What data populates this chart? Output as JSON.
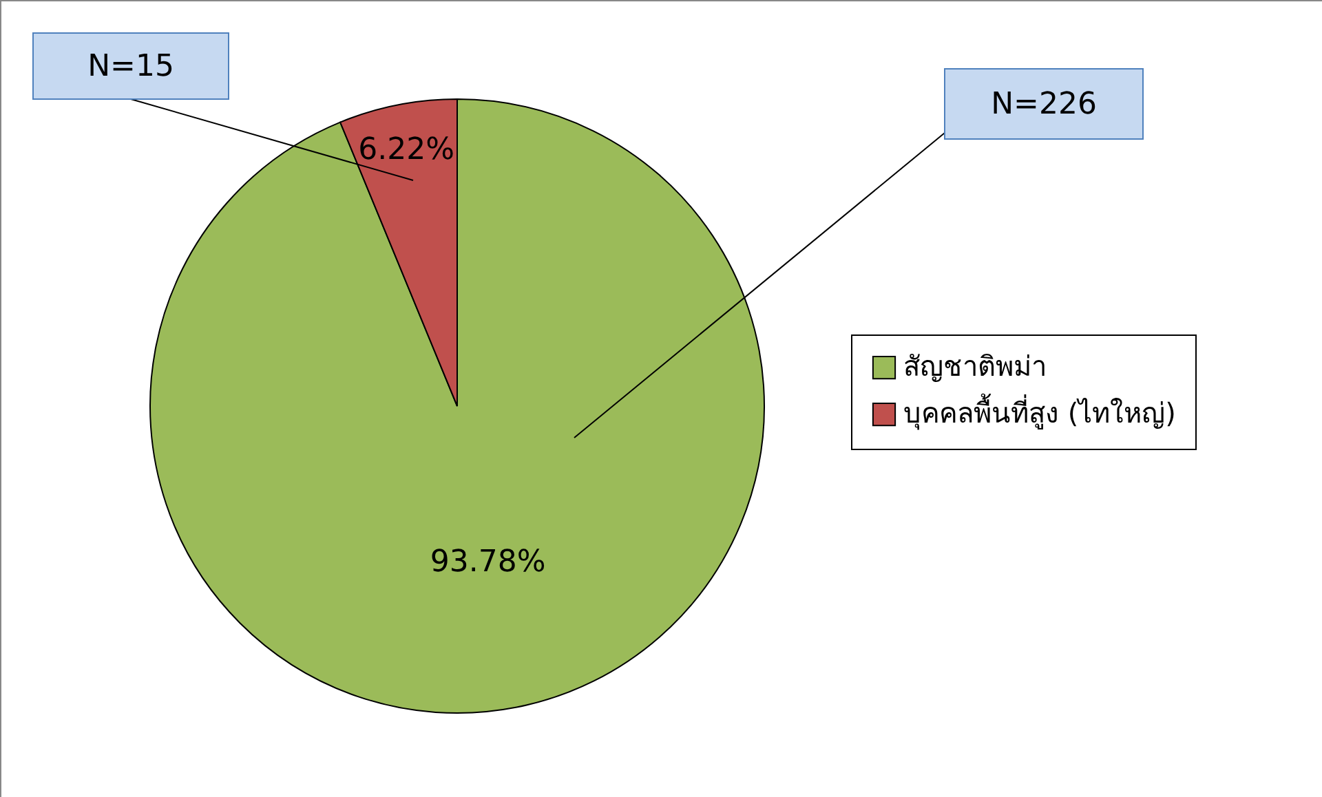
{
  "chart_data": {
    "type": "pie",
    "categories": [
      "สัญชาติพม่า",
      "บุคคลพื้นที่สูง (ไทใหญ่)"
    ],
    "values": [
      93.78,
      6.22
    ],
    "colors": [
      "#9bbb59",
      "#c0504d"
    ],
    "value_labels": [
      "93.78%",
      "6.22%"
    ],
    "annotations": [
      "N=226",
      "N=15"
    ],
    "legend": "right"
  }
}
